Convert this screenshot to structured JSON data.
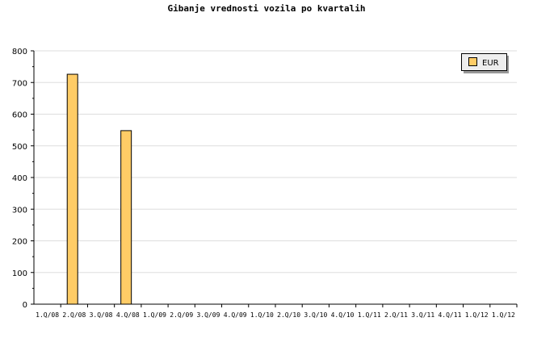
{
  "chart_data": {
    "type": "bar",
    "title": "Gibanje vrednosti vozila po kvartalih",
    "categories": [
      "1.Q/08",
      "2.Q/08",
      "3.Q/08",
      "4.Q/08",
      "1.Q/09",
      "2.Q/09",
      "3.Q/09",
      "4.Q/09",
      "1.Q/10",
      "2.Q/10",
      "3.Q/10",
      "4.Q/10",
      "1.Q/11",
      "2.Q/11",
      "3.Q/11",
      "4.Q/11",
      "1.Q/12",
      "1.Q/12"
    ],
    "series": [
      {
        "name": "EUR",
        "values": [
          0,
          726,
          0,
          548,
          0,
          0,
          0,
          0,
          0,
          0,
          0,
          0,
          0,
          0,
          0,
          0,
          0,
          0
        ]
      }
    ],
    "ylim": [
      0,
      800
    ],
    "yticks": [
      0,
      100,
      200,
      300,
      400,
      500,
      600,
      700,
      800
    ],
    "grid": true,
    "legend": "top-right",
    "colors": {
      "bar": "#ffcc66",
      "grid": "#dddddd"
    }
  }
}
